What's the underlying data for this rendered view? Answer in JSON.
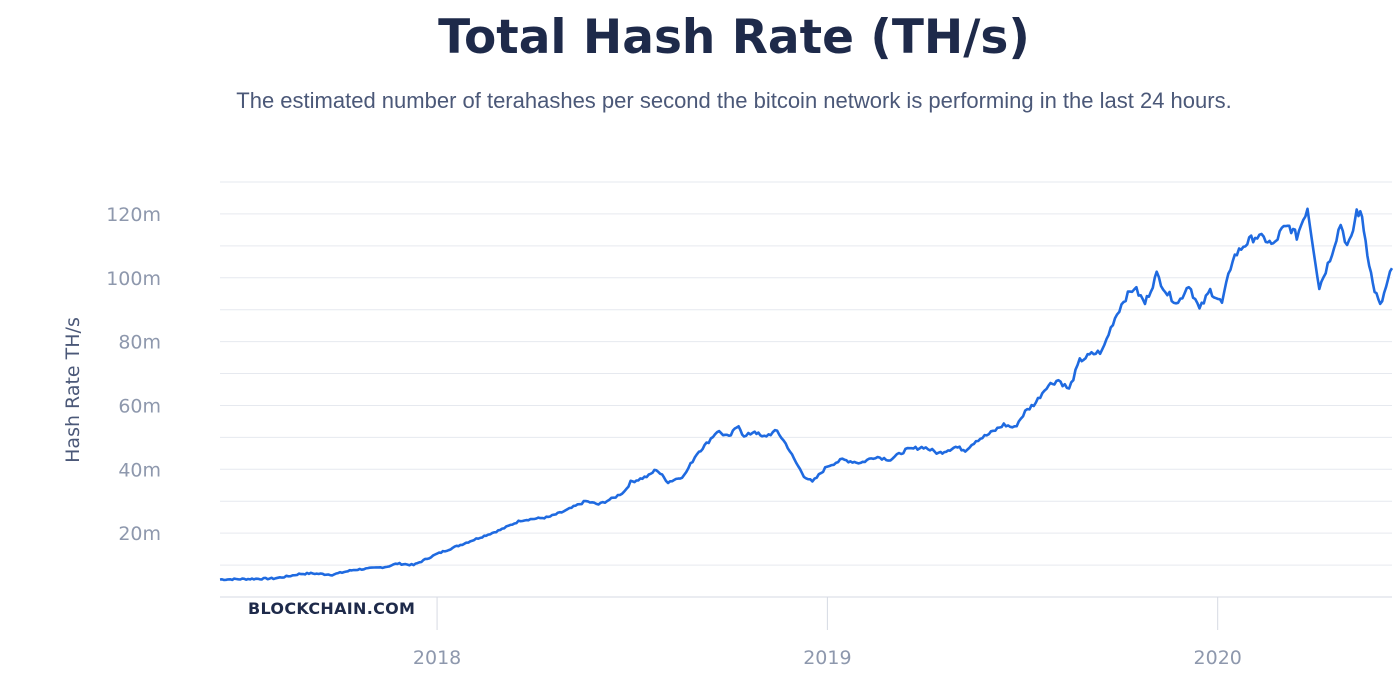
{
  "chart_data": {
    "type": "line",
    "title": "Total Hash Rate (TH/s)",
    "subtitle": "The estimated number of terahashes per second the bitcoin network is performing in the last 24 hours.",
    "ylabel": "Hash Rate TH/s",
    "xlabel": "",
    "watermark": "BLOCKCHAIN.COM",
    "ylim": [
      0,
      130
    ],
    "xlim": [
      "2017-06-12",
      "2020-06-12"
    ],
    "y_ticks": [
      {
        "value": 20,
        "label": "20m"
      },
      {
        "value": 40,
        "label": "40m"
      },
      {
        "value": 60,
        "label": "60m"
      },
      {
        "value": 80,
        "label": "80m"
      },
      {
        "value": 100,
        "label": "100m"
      },
      {
        "value": 120,
        "label": "120m"
      }
    ],
    "x_ticks": [
      {
        "value": "2018-01-01",
        "label": "2018"
      },
      {
        "value": "2019-01-01",
        "label": "2019"
      },
      {
        "value": "2020-01-01",
        "label": "2020"
      }
    ],
    "grid": "horizontal",
    "line_color": "#1f6ae0",
    "unit_note": "values in millions of TH/s",
    "series": [
      {
        "x": [
          "2017-06-12",
          "2017-07-01",
          "2017-08-01",
          "2017-08-15",
          "2017-08-25",
          "2017-09-05",
          "2017-09-25",
          "2017-10-15",
          "2017-11-01",
          "2017-11-15",
          "2017-11-25",
          "2017-12-10",
          "2018-01-01",
          "2018-02-01",
          "2018-03-01",
          "2018-03-20",
          "2018-04-15",
          "2018-05-01",
          "2018-05-20",
          "2018-06-01",
          "2018-06-15",
          "2018-06-25",
          "2018-07-01",
          "2018-07-10",
          "2018-07-18",
          "2018-07-25",
          "2018-08-05",
          "2018-08-20",
          "2018-09-01",
          "2018-09-10",
          "2018-09-20",
          "2018-10-01",
          "2018-10-10",
          "2018-10-15",
          "2018-10-25",
          "2018-11-01",
          "2018-11-15",
          "2018-11-25",
          "2018-12-01",
          "2018-12-10",
          "2018-12-18",
          "2019-01-01",
          "2019-01-15",
          "2019-02-01",
          "2019-02-15",
          "2019-03-01",
          "2019-03-15",
          "2019-04-01",
          "2019-04-15",
          "2019-05-01",
          "2019-05-10",
          "2019-05-20",
          "2019-06-01",
          "2019-06-15",
          "2019-06-25",
          "2019-07-05",
          "2019-07-15",
          "2019-07-25",
          "2019-08-05",
          "2019-08-15",
          "2019-08-25",
          "2019-09-05",
          "2019-09-15",
          "2019-09-25",
          "2019-10-05",
          "2019-10-15",
          "2019-10-25",
          "2019-11-05",
          "2019-11-15",
          "2019-11-25",
          "2019-12-05",
          "2019-12-15",
          "2019-12-25",
          "2020-01-05",
          "2020-01-15",
          "2020-01-25",
          "2020-02-05",
          "2020-02-15",
          "2020-02-22",
          "2020-03-01",
          "2020-03-08",
          "2020-03-15",
          "2020-03-25",
          "2020-04-05",
          "2020-04-15",
          "2020-04-25",
          "2020-05-01",
          "2020-05-05",
          "2020-05-10",
          "2020-05-15",
          "2020-05-20",
          "2020-05-25",
          "2020-06-01",
          "2020-06-12"
        ],
        "y": [
          5.5,
          5.6,
          5.8,
          6.5,
          7.2,
          7.4,
          7.0,
          8.5,
          9.0,
          9.5,
          10.5,
          10.0,
          13.5,
          17.5,
          21,
          24,
          25,
          27,
          30,
          29,
          31,
          33,
          36,
          37,
          38,
          40,
          36,
          38,
          45,
          48,
          52,
          50,
          54,
          50,
          52,
          50,
          52,
          47,
          43,
          38,
          36,
          41,
          43,
          42,
          44,
          43,
          46,
          47,
          45,
          47,
          46,
          49,
          51,
          54,
          53,
          58,
          61,
          66,
          68,
          65,
          74,
          76,
          77,
          86,
          93,
          97,
          92,
          101,
          95,
          92,
          98,
          90,
          96,
          92,
          106,
          110,
          113,
          112,
          110,
          115,
          116,
          113,
          122,
          97,
          106,
          117,
          110,
          112,
          121,
          119,
          108,
          98,
          91,
          103
        ]
      }
    ]
  }
}
